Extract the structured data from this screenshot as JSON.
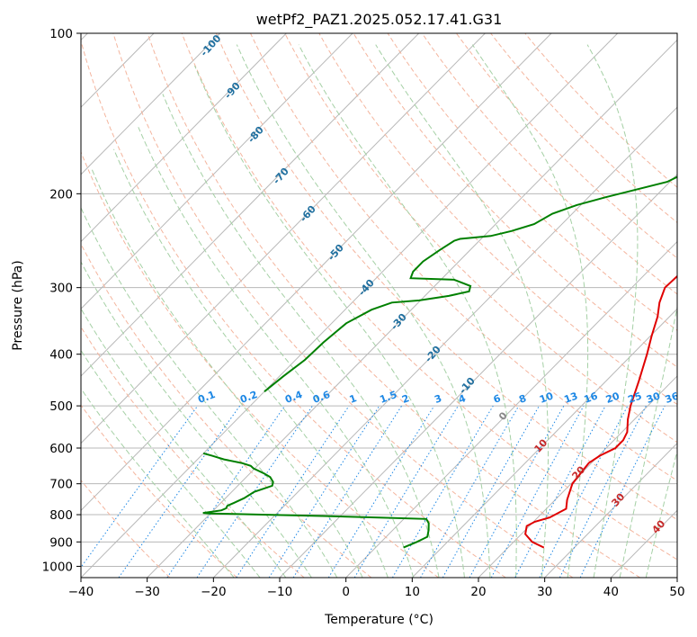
{
  "chart_data": {
    "type": "line",
    "title": "wetPf2_PAZ1.2025.052.17.41.G31",
    "xlabel": "Temperature (°C)",
    "ylabel": "Pressure (hPa)",
    "xlim": [
      -40,
      50
    ],
    "ylim": [
      1050,
      100
    ],
    "y_scale": "log",
    "grid": true,
    "x_ticks": [
      "−40",
      "−30",
      "−20",
      "−10",
      "0",
      "10",
      "20",
      "30",
      "40",
      "50"
    ],
    "x_tick_values": [
      -40,
      -30,
      -20,
      -10,
      0,
      10,
      20,
      30,
      40,
      50
    ],
    "y_ticks": [
      "100",
      "200",
      "300",
      "400",
      "500",
      "600",
      "700",
      "800",
      "900",
      "1000"
    ],
    "y_tick_values": [
      100,
      200,
      300,
      400,
      500,
      600,
      700,
      800,
      900,
      1000
    ],
    "isotherm_step": 10,
    "dry_adiabat_labels": [
      "-100",
      "-90",
      "-80",
      "-70",
      "-60",
      "-50",
      "-40",
      "-30",
      "-20",
      "-10",
      "0",
      "10",
      "20",
      "30",
      "40"
    ],
    "moist_adiabat_labels": [
      "0",
      "10",
      "20",
      "30",
      "40"
    ],
    "mixing_ratio_labels": [
      "0.1",
      "0.2",
      "0.4",
      "0.6",
      "1",
      "1.5",
      "2",
      "3",
      "4",
      "6",
      "8",
      "10",
      "13",
      "16",
      "20",
      "25",
      "30",
      "36"
    ],
    "series": [
      {
        "role": "temperature",
        "color": "#e00000",
        "points": [
          [
            922,
            25.4
          ],
          [
            900,
            22.8
          ],
          [
            870,
            20.6
          ],
          [
            840,
            19.6
          ],
          [
            825,
            20.2
          ],
          [
            810,
            21.8
          ],
          [
            780,
            23.0
          ],
          [
            750,
            21.8
          ],
          [
            700,
            20.2
          ],
          [
            660,
            19.8
          ],
          [
            640,
            19.6
          ],
          [
            620,
            20.2
          ],
          [
            600,
            21.4
          ],
          [
            580,
            21.4
          ],
          [
            560,
            20.8
          ],
          [
            530,
            19.0
          ],
          [
            500,
            17.4
          ],
          [
            450,
            15.0
          ],
          [
            400,
            12.2
          ],
          [
            370,
            10.2
          ],
          [
            340,
            8.2
          ],
          [
            320,
            6.4
          ],
          [
            300,
            5.0
          ],
          [
            280,
            5.2
          ],
          [
            270,
            5.6
          ],
          [
            250,
            5.4
          ],
          [
            230,
            4.8
          ],
          [
            210,
            3.6
          ],
          [
            190,
            2.2
          ],
          [
            175,
            1.4
          ],
          [
            162,
            1.6
          ],
          [
            150,
            3.6
          ],
          [
            140,
            5.0
          ],
          [
            130,
            6.6
          ],
          [
            120,
            7.4
          ],
          [
            110,
            9.2
          ],
          [
            100,
            10.8
          ]
        ]
      },
      {
        "role": "dewpoint",
        "color": "#008000",
        "points": [
          [
            922,
            4.2
          ],
          [
            900,
            5.4
          ],
          [
            880,
            6.2
          ],
          [
            855,
            5.4
          ],
          [
            830,
            4.4
          ],
          [
            815,
            3.4
          ],
          [
            810,
            -4.0
          ],
          [
            805,
            -12.0
          ],
          [
            800,
            -22.0
          ],
          [
            796,
            -30.0
          ],
          [
            794,
            -31.2
          ],
          [
            790,
            -30.0
          ],
          [
            785,
            -28.8
          ],
          [
            778,
            -28.4
          ],
          [
            770,
            -28.6
          ],
          [
            760,
            -28.0
          ],
          [
            745,
            -27.2
          ],
          [
            725,
            -26.6
          ],
          [
            706,
            -24.8
          ],
          [
            695,
            -25.2
          ],
          [
            680,
            -26.4
          ],
          [
            670,
            -27.8
          ],
          [
            655,
            -30.2
          ],
          [
            648,
            -31.0
          ],
          [
            640,
            -32.8
          ],
          [
            630,
            -36.0
          ],
          [
            620,
            -38.4
          ],
          [
            614,
            -40.0
          ]
        ],
        "upper_points": [
          [
            470,
            -40.0
          ],
          [
            440,
            -39.4
          ],
          [
            410,
            -38.6
          ],
          [
            380,
            -38.4
          ],
          [
            350,
            -37.8
          ],
          [
            330,
            -36.0
          ],
          [
            320,
            -34.0
          ],
          [
            317,
            -30.2
          ],
          [
            311,
            -26.4
          ],
          [
            305,
            -24.0
          ],
          [
            298,
            -24.6
          ],
          [
            290,
            -28.0
          ],
          [
            288,
            -34.8
          ],
          [
            280,
            -35.4
          ],
          [
            268,
            -35.4
          ],
          [
            255,
            -34.6
          ],
          [
            245,
            -33.8
          ],
          [
            243,
            -33.2
          ],
          [
            240,
            -29.0
          ],
          [
            235,
            -26.6
          ],
          [
            228,
            -24.2
          ],
          [
            218,
            -23.0
          ],
          [
            210,
            -20.6
          ],
          [
            203,
            -17.4
          ],
          [
            198,
            -14.8
          ],
          [
            190,
            -10.4
          ],
          [
            180,
            -8.4
          ],
          [
            170,
            -7.2
          ],
          [
            160,
            -7.2
          ],
          [
            150,
            -7.8
          ],
          [
            140,
            -8.2
          ],
          [
            130,
            -8.8
          ],
          [
            122,
            -9.6
          ],
          [
            115,
            -10.0
          ],
          [
            108,
            -10.6
          ],
          [
            100,
            -11.6
          ]
        ]
      }
    ],
    "colors": {
      "isotherm": "#b8b8b8",
      "isobar": "#b8b8b8",
      "dry_adiabat": "#f4b59e",
      "moist_adiabat": "#a5d0a5",
      "mixing_ratio": "#1e88e5",
      "special_isotherm": "#dcc8a8"
    }
  }
}
